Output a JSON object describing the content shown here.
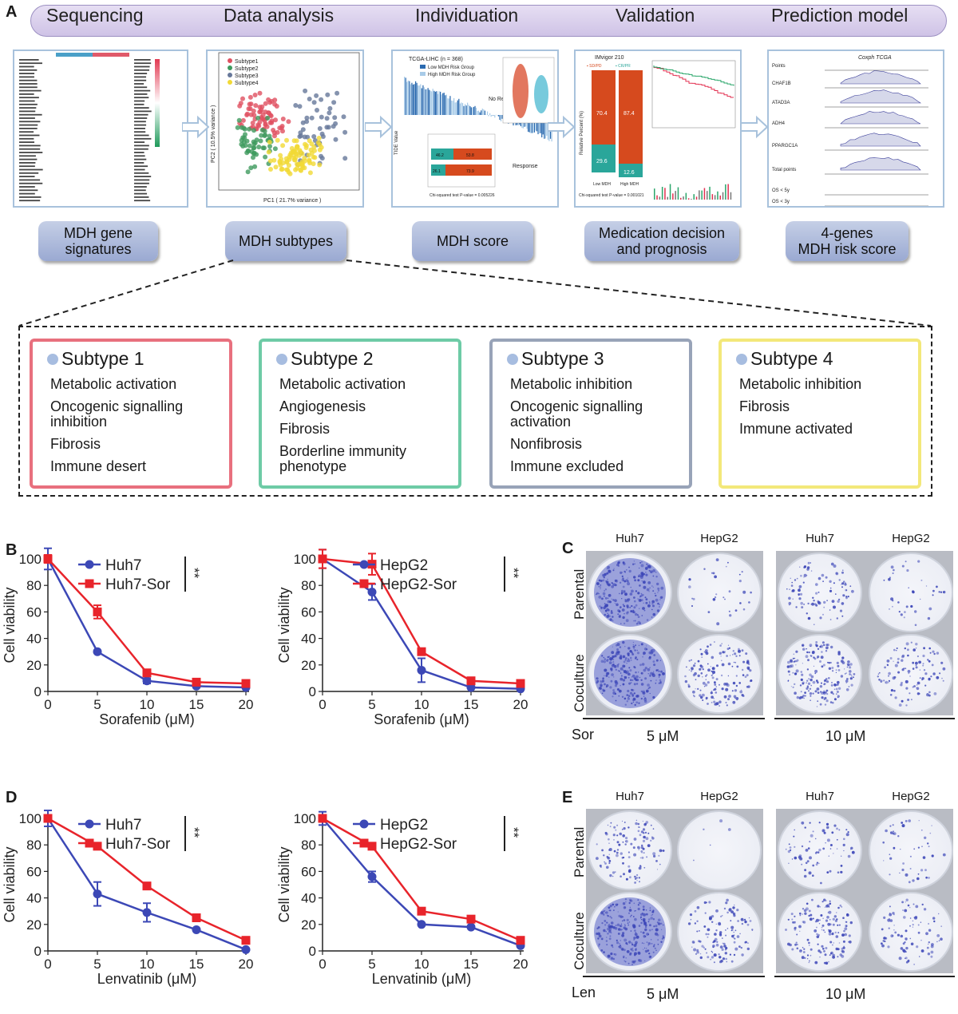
{
  "panels": {
    "A": "A",
    "B": "B",
    "C": "C",
    "D": "D",
    "E": "E"
  },
  "pipeline": {
    "stages": [
      "Sequencing",
      "Data analysis",
      "Individuation",
      "Validation",
      "Prediction model"
    ],
    "outputs": [
      [
        "MDH gene",
        "signatures"
      ],
      [
        "MDH subtypes"
      ],
      [
        "MDH score"
      ],
      [
        "Medication decision",
        "and prognosis"
      ],
      [
        "4-genes",
        "MDH risk score"
      ]
    ],
    "thumbs": {
      "pca": {
        "legend": [
          "Subtype1",
          "Subtype2",
          "Subtype3",
          "Subtype4"
        ],
        "xlabel": "PC1 ( 21.7% variance )",
        "ylabel": "PC2 ( 10.5% variance )"
      },
      "tide": {
        "title": "TCGA-LIHC (n = 368)",
        "low": "Low MDH Risk Group",
        "high": "High MDH Risk Group",
        "no_resp": "No Response",
        "resp": "Response",
        "ylabel": "TIDE Value",
        "chi": "Chi-squared test P-value = 0.005226",
        "bars": [
          [
            "46.2",
            "53.8"
          ],
          [
            "26.1",
            "73.9"
          ]
        ]
      },
      "imvigor": {
        "title": "IMvigor 210",
        "l1": "▪ SD/PD",
        "l2": "▪ CR/PR",
        "v1": "70.4",
        "v2": "87.4",
        "v3": "29.6",
        "v4": "12.6",
        "x1": "Low MDH",
        "x2": "High MDH",
        "chi": "Chi-squared test P-value = 0.001021",
        "ylabel": "Relative Percent (%)"
      },
      "nomogram": {
        "title": "Coxph TCGA",
        "rows": [
          "Points",
          "CHAF1B",
          "ATAD3A",
          "ADH4",
          "PPARGC1A",
          "Total points",
          "OS < 5y",
          "OS < 3y"
        ]
      }
    }
  },
  "subtypes": [
    {
      "title": "Subtype 1",
      "color": "#e8707e",
      "features": [
        "Metabolic activation",
        "Oncogenic signalling inhibition",
        "Fibrosis",
        "Immune desert"
      ]
    },
    {
      "title": "Subtype 2",
      "color": "#6ecba6",
      "features": [
        "Metabolic activation",
        "Angiogenesis",
        "Fibrosis",
        "Borderline immunity phenotype"
      ]
    },
    {
      "title": "Subtype 3",
      "color": "#98a3b8",
      "features": [
        "Metabolic inhibition",
        "Oncogenic signalling activation",
        "Nonfibrosis",
        "Immune excluded"
      ]
    },
    {
      "title": "Subtype 4",
      "color": "#f3e87a",
      "features": [
        "Metabolic inhibition",
        "Fibrosis",
        "Immune activated"
      ]
    }
  ],
  "chart_data": [
    {
      "panel": "B",
      "type": "line",
      "ylabel": "Cell viability",
      "xlabel": "Sorafenib (μM)",
      "x": [
        0,
        5,
        10,
        15,
        20
      ],
      "ylim": [
        0,
        100
      ],
      "significance": "**",
      "series": [
        {
          "name": "Huh7",
          "color": "#3c48b6",
          "values": [
            100,
            30,
            8,
            4,
            3
          ],
          "err": [
            8,
            0,
            2,
            1,
            1
          ]
        },
        {
          "name": "Huh7-Sor",
          "color": "#e8242b",
          "values": [
            100,
            60,
            14,
            7,
            6
          ],
          "err": [
            3,
            5,
            2,
            1,
            1
          ]
        }
      ]
    },
    {
      "panel": "B",
      "type": "line",
      "ylabel": "Cell viability",
      "xlabel": "Sorafenib (μM)",
      "x": [
        0,
        5,
        10,
        15,
        20
      ],
      "ylim": [
        0,
        100
      ],
      "significance": "**",
      "series": [
        {
          "name": "HepG2",
          "color": "#3c48b6",
          "values": [
            100,
            75,
            16,
            3,
            2
          ],
          "err": [
            7,
            6,
            9,
            1,
            1
          ]
        },
        {
          "name": "HepG2-Sor",
          "color": "#e8242b",
          "values": [
            100,
            96,
            30,
            8,
            6
          ],
          "err": [
            7,
            8,
            2,
            1,
            1
          ]
        }
      ]
    },
    {
      "panel": "D",
      "type": "line",
      "ylabel": "Cell viability",
      "xlabel": "Lenvatinib (μM)",
      "x": [
        0,
        5,
        10,
        15,
        20
      ],
      "ylim": [
        0,
        100
      ],
      "significance": "**",
      "series": [
        {
          "name": "Huh7",
          "color": "#3c48b6",
          "values": [
            100,
            43,
            29,
            16,
            1
          ],
          "err": [
            6,
            9,
            7,
            1,
            1
          ]
        },
        {
          "name": "Huh7-Sor",
          "color": "#e8242b",
          "values": [
            100,
            79,
            49,
            25,
            8
          ],
          "err": [
            2,
            1,
            1,
            1,
            1
          ]
        }
      ]
    },
    {
      "panel": "D",
      "type": "line",
      "ylabel": "Cell viability",
      "xlabel": "Lenvatinib (μM)",
      "x": [
        0,
        5,
        10,
        15,
        20
      ],
      "ylim": [
        0,
        100
      ],
      "significance": "**",
      "series": [
        {
          "name": "HepG2",
          "color": "#3c48b6",
          "values": [
            100,
            56,
            20,
            18,
            4
          ],
          "err": [
            5,
            4,
            1,
            1,
            1
          ]
        },
        {
          "name": "HepG2-Sor",
          "color": "#e8242b",
          "values": [
            100,
            79,
            30,
            24,
            8
          ],
          "err": [
            2,
            1,
            1,
            1,
            1
          ]
        }
      ]
    }
  ],
  "panelC": {
    "cols": [
      "Huh7",
      "HepG2",
      "Huh7",
      "HepG2"
    ],
    "rows": [
      "Parental",
      "Coculture"
    ],
    "drug": "Sor",
    "doses": [
      "5 μM",
      "10 μM"
    ]
  },
  "panelE": {
    "cols": [
      "Huh7",
      "HepG2",
      "Huh7",
      "HepG2"
    ],
    "rows": [
      "Parental",
      "Coculture"
    ],
    "drug": "Len",
    "doses": [
      "5 μM",
      "10 μM"
    ]
  },
  "colony_density": {
    "C": [
      [
        0.95,
        0.12,
        0.38,
        0.15
      ],
      [
        0.98,
        0.6,
        0.75,
        0.42
      ]
    ],
    "E": [
      [
        0.5,
        0.02,
        0.3,
        0.18
      ],
      [
        0.97,
        0.5,
        0.6,
        0.35
      ]
    ]
  },
  "colors": {
    "stain": "#3d47b8",
    "red": "#e8242b",
    "blue": "#3c48b6"
  }
}
